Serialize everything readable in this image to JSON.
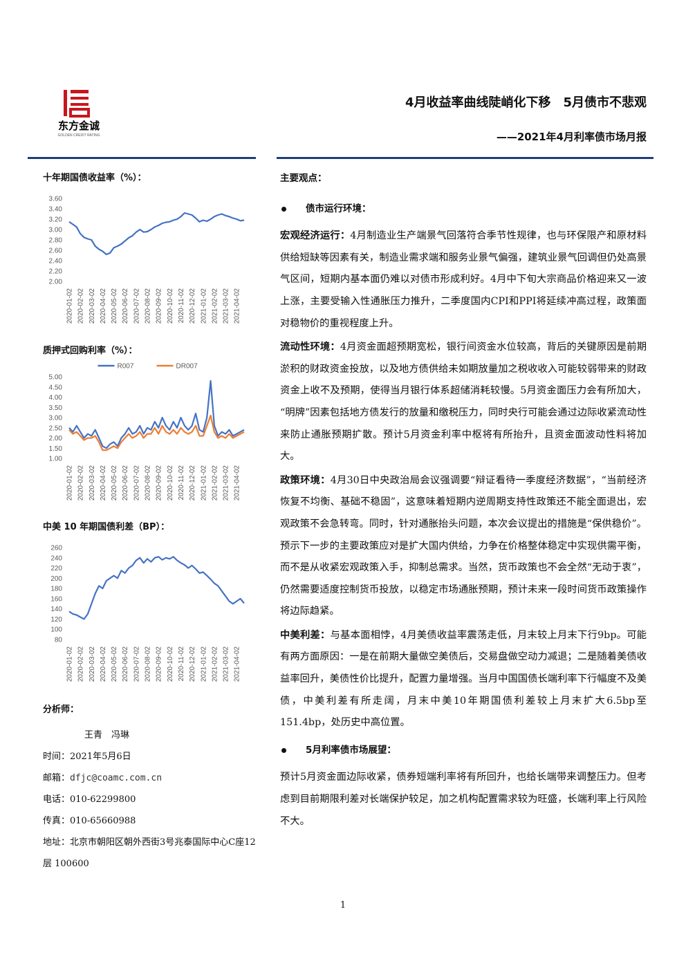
{
  "header": {
    "logo_name": "东方金诚",
    "logo_sub": "GOLDEN CREDIT RATING",
    "title": "4月收益率曲线陡峭化下移　5月债市不悲观",
    "subtitle": "——2021年4月利率债市场月报"
  },
  "chart_data": [
    {
      "type": "line",
      "title": "十年期国债收益率（%）：",
      "categories": [
        "2020-01-02",
        null,
        null,
        "2020-02-02",
        null,
        null,
        "2020-03-02",
        null,
        null,
        "2020-04-02",
        null,
        null,
        "2020-05-02",
        null,
        null,
        "2020-06-02",
        null,
        null,
        "2020-07-02",
        null,
        null,
        "2020-08-02",
        null,
        null,
        "2020-09-02",
        null,
        null,
        "2020-10-02",
        null,
        null,
        "2020-11-02",
        null,
        null,
        "2020-12-02",
        null,
        null,
        "2021-01-02",
        null,
        null,
        "2021-02-02",
        null,
        null,
        "2021-03-02",
        null,
        null,
        "2021-04-02",
        null,
        null
      ],
      "series": [
        {
          "name": "十年期国债收益率",
          "color": "#4472c4",
          "values": [
            3.15,
            3.1,
            3.05,
            2.92,
            2.85,
            2.82,
            2.8,
            2.68,
            2.62,
            2.58,
            2.52,
            2.55,
            2.65,
            2.68,
            2.72,
            2.78,
            2.84,
            2.88,
            2.95,
            3.0,
            2.95,
            2.96,
            3.0,
            3.05,
            3.08,
            3.12,
            3.14,
            3.15,
            3.18,
            3.2,
            3.25,
            3.32,
            3.3,
            3.28,
            3.22,
            3.15,
            3.18,
            3.16,
            3.2,
            3.25,
            3.28,
            3.3,
            3.27,
            3.25,
            3.22,
            3.2,
            3.17,
            3.18
          ]
        }
      ],
      "ylim": [
        2.0,
        3.6
      ],
      "yticks": [
        {
          "value": 2.0,
          "label": "2.00"
        },
        {
          "value": 2.2,
          "label": "2.20"
        },
        {
          "value": 2.4,
          "label": "2.40"
        },
        {
          "value": 2.6,
          "label": "2.60"
        },
        {
          "value": 2.8,
          "label": "2.80"
        },
        {
          "value": 3.0,
          "label": "3.00"
        },
        {
          "value": 3.2,
          "label": "3.20"
        },
        {
          "value": 3.4,
          "label": "3.40"
        },
        {
          "value": 3.6,
          "label": "3.60"
        }
      ],
      "grid": false
    },
    {
      "type": "line",
      "title": "质押式回购利率（%）：",
      "legend": "top",
      "categories": [
        "2020-01-02",
        null,
        null,
        "2020-02-02",
        null,
        null,
        "2020-03-02",
        null,
        null,
        "2020-04-02",
        null,
        null,
        "2020-05-02",
        null,
        null,
        "2020-06-02",
        null,
        null,
        "2020-07-02",
        null,
        null,
        "2020-08-02",
        null,
        null,
        "2020-09-02",
        null,
        null,
        "2020-10-02",
        null,
        null,
        "2020-11-02",
        null,
        null,
        "2020-12-02",
        null,
        null,
        "2021-01-02",
        null,
        null,
        "2021-02-02",
        null,
        null,
        "2021-03-02",
        null,
        null,
        "2021-04-02",
        null,
        null
      ],
      "series": [
        {
          "name": "R007",
          "color": "#4472c4",
          "values": [
            2.5,
            2.3,
            2.6,
            2.3,
            2.0,
            2.2,
            2.1,
            2.4,
            2.0,
            1.6,
            1.5,
            1.7,
            1.8,
            1.6,
            2.0,
            2.2,
            2.5,
            2.2,
            2.3,
            2.6,
            2.2,
            2.5,
            2.4,
            2.8,
            2.5,
            3.0,
            2.6,
            2.4,
            2.8,
            2.5,
            3.0,
            2.6,
            2.4,
            2.6,
            3.2,
            2.4,
            2.3,
            3.0,
            4.8,
            2.6,
            2.1,
            2.3,
            2.2,
            2.4,
            2.1,
            2.2,
            2.3,
            2.4
          ]
        },
        {
          "name": "DR007",
          "color": "#ed7d31",
          "values": [
            2.4,
            2.2,
            2.3,
            2.1,
            1.9,
            2.0,
            2.0,
            2.1,
            1.8,
            1.4,
            1.4,
            1.5,
            1.6,
            1.5,
            1.8,
            2.0,
            2.2,
            2.0,
            2.1,
            2.3,
            2.0,
            2.2,
            2.2,
            2.5,
            2.2,
            2.6,
            2.3,
            2.2,
            2.4,
            2.2,
            2.5,
            2.3,
            2.2,
            2.3,
            2.6,
            2.1,
            2.1,
            2.6,
            3.1,
            2.3,
            2.0,
            2.1,
            2.0,
            2.2,
            2.0,
            2.1,
            2.2,
            2.3
          ]
        }
      ],
      "ylim": [
        1.0,
        5.0
      ],
      "yticks": [
        {
          "value": 1.0,
          "label": "1.00"
        },
        {
          "value": 1.5,
          "label": "1.50"
        },
        {
          "value": 2.0,
          "label": "2.00"
        },
        {
          "value": 2.5,
          "label": "2.50"
        },
        {
          "value": 3.0,
          "label": "3.00"
        },
        {
          "value": 3.5,
          "label": "3.50"
        },
        {
          "value": 4.0,
          "label": "4.00"
        },
        {
          "value": 4.5,
          "label": "4.50"
        },
        {
          "value": 5.0,
          "label": "5.00"
        }
      ],
      "grid": false
    },
    {
      "type": "line",
      "title": "中美 10 年期国债利差（BP）：",
      "categories": [
        "2020-01-02",
        null,
        null,
        "2020-02-02",
        null,
        null,
        "2020-03-02",
        null,
        null,
        "2020-04-02",
        null,
        null,
        "2020-05-02",
        null,
        null,
        "2020-06-02",
        null,
        null,
        "2020-07-02",
        null,
        null,
        "2020-08-02",
        null,
        null,
        "2020-09-02",
        null,
        null,
        "2020-10-02",
        null,
        null,
        "2020-11-02",
        null,
        null,
        "2020-12-02",
        null,
        null,
        "2021-01-02",
        null,
        null,
        "2021-02-02",
        null,
        null,
        "2021-03-02",
        null,
        null,
        "2021-04-02",
        null,
        null
      ],
      "series": [
        {
          "name": "中美10年期国债利差",
          "color": "#4472c4",
          "values": [
            135,
            130,
            128,
            124,
            120,
            130,
            150,
            170,
            185,
            180,
            195,
            200,
            205,
            200,
            215,
            210,
            220,
            225,
            235,
            240,
            230,
            238,
            232,
            240,
            242,
            236,
            240,
            238,
            242,
            235,
            230,
            226,
            220,
            225,
            218,
            210,
            212,
            205,
            198,
            190,
            185,
            175,
            165,
            155,
            150,
            155,
            160,
            151
          ]
        }
      ],
      "ylim": [
        80,
        260
      ],
      "yticks": [
        80,
        100,
        120,
        140,
        160,
        180,
        200,
        220,
        240,
        260
      ],
      "grid": false
    }
  ],
  "analysts": {
    "heading": "分析师：",
    "names": "王青　冯琳",
    "items": [
      {
        "label": "时间：",
        "value": "2021年5月6日"
      },
      {
        "label": "邮箱：",
        "value": "dfjc@coamc.com.cn"
      },
      {
        "label": "电话：",
        "value": "010-62299800"
      },
      {
        "label": "传真：",
        "value": "010-65660988"
      },
      {
        "label": "地址：",
        "value": "北京市朝阳区朝外西街3号兆泰国际中心C座12层 100600"
      }
    ]
  },
  "main": {
    "heading": "主要观点：",
    "bullet1": "债市运行环境：",
    "paragraphs": [
      {
        "lead": "宏观经济运行：",
        "body": "4月制造业生产端景气回落符合季节性规律，也与环保限产和原材料供给短缺等因素有关，制造业需求端和服务业景气偏强，建筑业景气回调但仍处高景气区间，短期内基本面仍难以对债市形成利好。4月中下旬大宗商品价格迎来又一波上涨，主要受输入性通胀压力推升，二季度国内CPI和PPI将延续冲高过程，政策面对稳物价的重视程度上升。"
      },
      {
        "lead": "流动性环境：",
        "body": "4月资金面超预期宽松，银行间资金水位较高，背后的关键原因是前期淤积的财政资金投放，以及地方债供给未如期放量加之税收收入可能较弱带来的财政资金上收不及预期，使得当月银行体系超储消耗较慢。5月资金面压力会有所加大，“明牌”因素包括地方债发行的放量和缴税压力，同时央行可能会通过边际收紧流动性来防止通胀预期扩散。预计5月资金利率中枢将有所抬升，且资金面波动性料将加大。"
      },
      {
        "lead": "政策环境：",
        "body": "4月30日中央政治局会议强调要“辩证看待一季度经济数据”，“当前经济恢复不均衡、基础不稳固”，这意味着短期内逆周期支持性政策还不能全面退出，宏观政策不会急转弯。同时，针对通胀抬头问题，本次会议提出的措施是“保供稳价”。预示下一步的主要政策应对是扩大国内供给，力争在价格整体稳定中实现供需平衡，而不是从收紧宏观政策入手，抑制总需求。当然，货币政策也不会全然“无动于衷”，仍然需要适度控制货币投放，以稳定市场通胀预期，预计未来一段时间货币政策操作将边际趋紧。"
      },
      {
        "lead": "中美利差：",
        "body": "与基本面相悖，4月美债收益率震荡走低，月末较上月末下行9bp。可能有两方面原因：一是在前期大量做空美债后，交易盘做空动力减退；二是随着美债收益率回升，美债性价比提升，配置力量增强。当月中国国债长端利率下行幅度不及美债，中美利差有所走阔，月末中美10年期国债利差较上月末扩大6.5bp至151.4bp，处历史中高位置。"
      }
    ],
    "bullet2": "5月利率债市场展望：",
    "outlook": "预计5月资金面边际收紧，债券短端利率将有所回升，也给长端带来调整压力。但考虑到目前期限利差对长端保护较足，加之机构配置需求较为旺盛，长端利率上行风险不大。"
  },
  "page_number": "1"
}
